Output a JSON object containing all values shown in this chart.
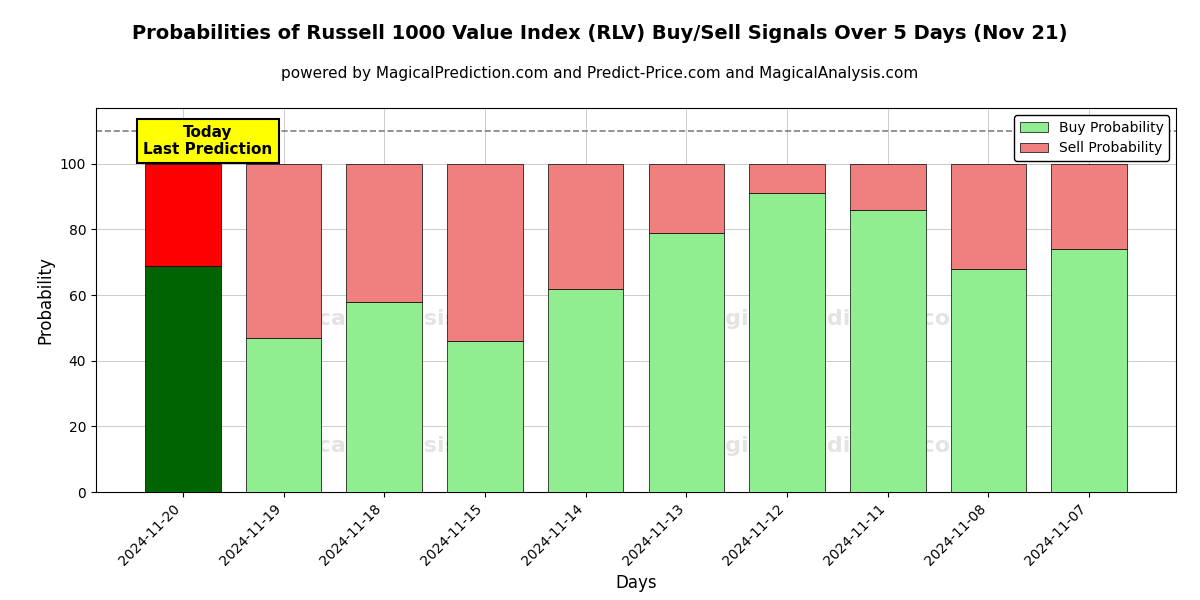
{
  "title": "Probabilities of Russell 1000 Value Index (RLV) Buy/Sell Signals Over 5 Days (Nov 21)",
  "subtitle": "powered by MagicalPrediction.com and Predict-Price.com and MagicalAnalysis.com",
  "xlabel": "Days",
  "ylabel": "Probability",
  "dates": [
    "2024-11-20",
    "2024-11-19",
    "2024-11-18",
    "2024-11-15",
    "2024-11-14",
    "2024-11-13",
    "2024-11-12",
    "2024-11-11",
    "2024-11-08",
    "2024-11-07"
  ],
  "buy_probs": [
    69,
    47,
    58,
    46,
    62,
    79,
    91,
    86,
    68,
    74
  ],
  "sell_probs": [
    31,
    53,
    42,
    54,
    38,
    21,
    9,
    14,
    32,
    26
  ],
  "today_buy_color": "#006400",
  "today_sell_color": "#FF0000",
  "buy_color_light": "#90EE90",
  "sell_color_light": "#F08080",
  "today_annotation_text": "Today\nLast Prediction",
  "today_annotation_bg": "#FFFF00",
  "dashed_line_y": 110,
  "ylim": [
    0,
    117
  ],
  "yticks": [
    0,
    20,
    40,
    60,
    80,
    100
  ],
  "grid_color": "#cccccc",
  "background_color": "#ffffff",
  "title_fontsize": 14,
  "subtitle_fontsize": 11,
  "axis_label_fontsize": 12,
  "tick_fontsize": 10,
  "bar_width": 0.75
}
